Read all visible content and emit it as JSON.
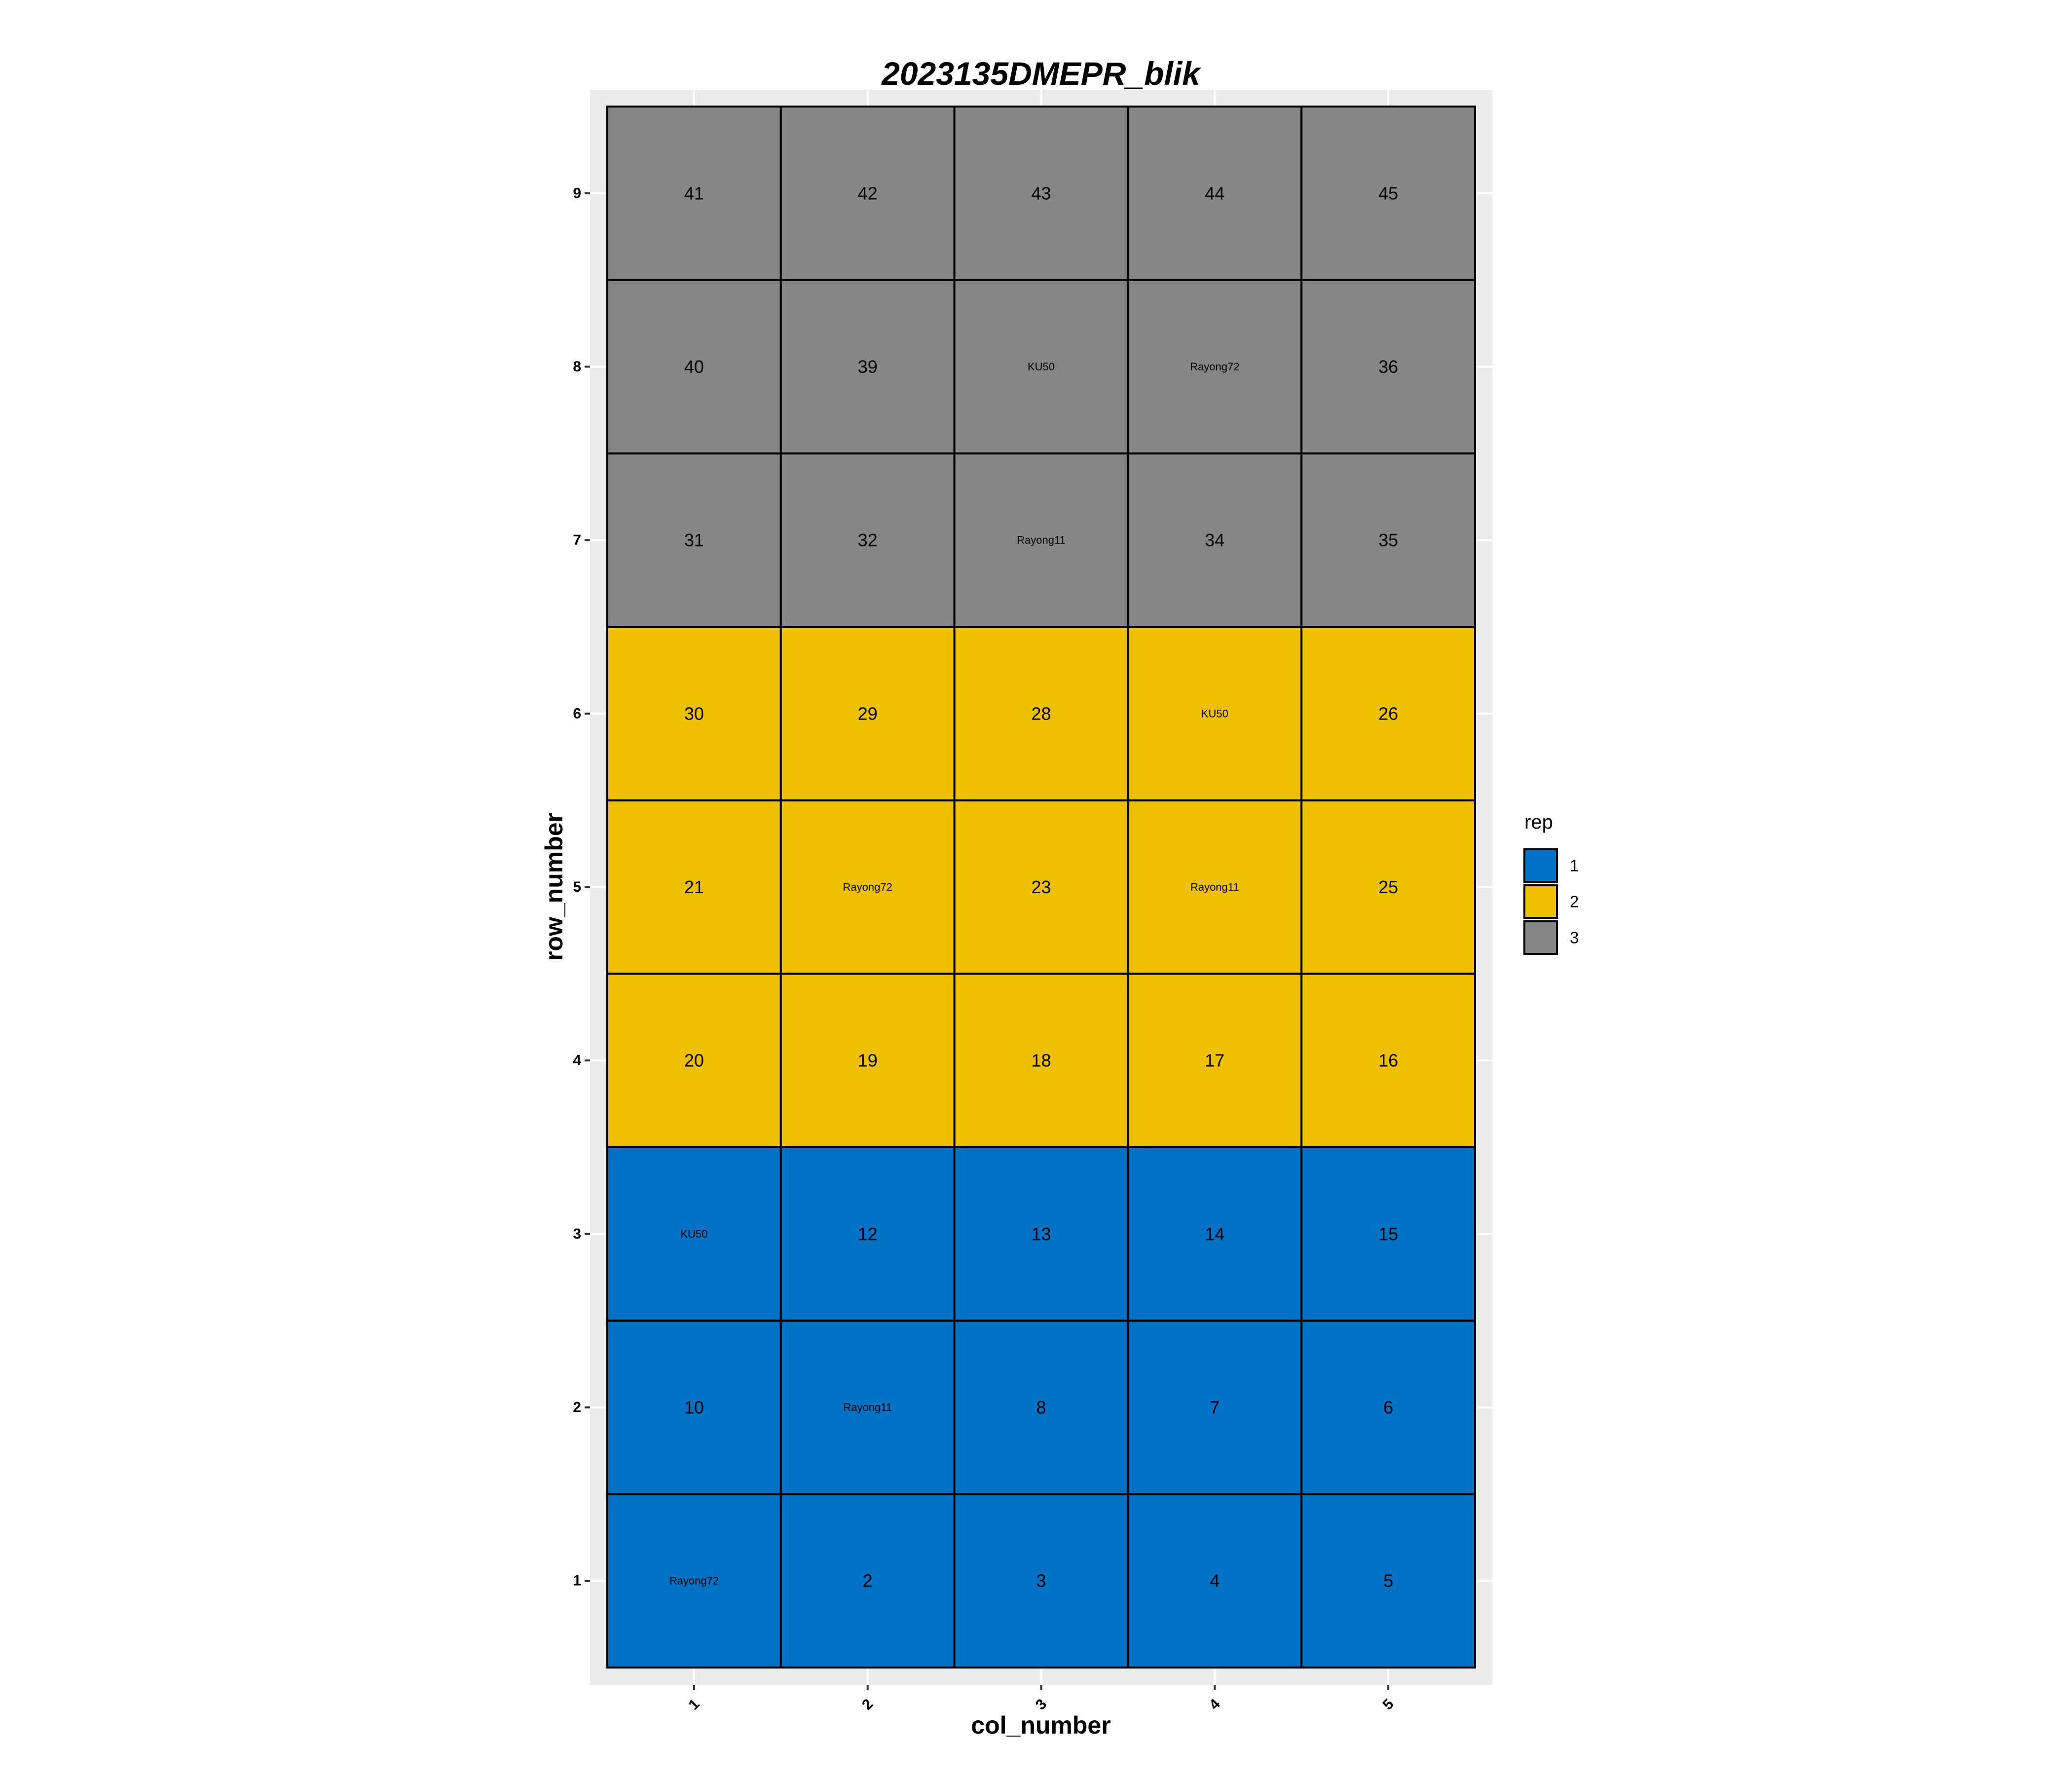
{
  "chart_data": {
    "type": "heatmap",
    "title": "2023135DMEPR_blik",
    "xlabel": "col_number",
    "ylabel": "row_number",
    "x_ticks": [
      1,
      2,
      3,
      4,
      5
    ],
    "y_ticks": [
      1,
      2,
      3,
      4,
      5,
      6,
      7,
      8,
      9
    ],
    "xlim": [
      0.5,
      5.5
    ],
    "ylim": [
      0.5,
      9.5
    ],
    "grid": true,
    "legend": {
      "title": "rep",
      "placement": "right",
      "entries": [
        {
          "label": "1",
          "color": "#0072C6"
        },
        {
          "label": "2",
          "color": "#EFC000"
        },
        {
          "label": "3",
          "color": "#868686"
        }
      ]
    },
    "cells": [
      {
        "row": 1,
        "col": 1,
        "rep": "1",
        "label": "Rayong72"
      },
      {
        "row": 1,
        "col": 2,
        "rep": "1",
        "label": "2"
      },
      {
        "row": 1,
        "col": 3,
        "rep": "1",
        "label": "3"
      },
      {
        "row": 1,
        "col": 4,
        "rep": "1",
        "label": "4"
      },
      {
        "row": 1,
        "col": 5,
        "rep": "1",
        "label": "5"
      },
      {
        "row": 2,
        "col": 1,
        "rep": "1",
        "label": "10"
      },
      {
        "row": 2,
        "col": 2,
        "rep": "1",
        "label": "Rayong11"
      },
      {
        "row": 2,
        "col": 3,
        "rep": "1",
        "label": "8"
      },
      {
        "row": 2,
        "col": 4,
        "rep": "1",
        "label": "7"
      },
      {
        "row": 2,
        "col": 5,
        "rep": "1",
        "label": "6"
      },
      {
        "row": 3,
        "col": 1,
        "rep": "1",
        "label": "KU50"
      },
      {
        "row": 3,
        "col": 2,
        "rep": "1",
        "label": "12"
      },
      {
        "row": 3,
        "col": 3,
        "rep": "1",
        "label": "13"
      },
      {
        "row": 3,
        "col": 4,
        "rep": "1",
        "label": "14"
      },
      {
        "row": 3,
        "col": 5,
        "rep": "1",
        "label": "15"
      },
      {
        "row": 4,
        "col": 1,
        "rep": "2",
        "label": "20"
      },
      {
        "row": 4,
        "col": 2,
        "rep": "2",
        "label": "19"
      },
      {
        "row": 4,
        "col": 3,
        "rep": "2",
        "label": "18"
      },
      {
        "row": 4,
        "col": 4,
        "rep": "2",
        "label": "17"
      },
      {
        "row": 4,
        "col": 5,
        "rep": "2",
        "label": "16"
      },
      {
        "row": 5,
        "col": 1,
        "rep": "2",
        "label": "21"
      },
      {
        "row": 5,
        "col": 2,
        "rep": "2",
        "label": "Rayong72"
      },
      {
        "row": 5,
        "col": 3,
        "rep": "2",
        "label": "23"
      },
      {
        "row": 5,
        "col": 4,
        "rep": "2",
        "label": "Rayong11"
      },
      {
        "row": 5,
        "col": 5,
        "rep": "2",
        "label": "25"
      },
      {
        "row": 6,
        "col": 1,
        "rep": "2",
        "label": "30"
      },
      {
        "row": 6,
        "col": 2,
        "rep": "2",
        "label": "29"
      },
      {
        "row": 6,
        "col": 3,
        "rep": "2",
        "label": "28"
      },
      {
        "row": 6,
        "col": 4,
        "rep": "2",
        "label": "KU50"
      },
      {
        "row": 6,
        "col": 5,
        "rep": "2",
        "label": "26"
      },
      {
        "row": 7,
        "col": 1,
        "rep": "3",
        "label": "31"
      },
      {
        "row": 7,
        "col": 2,
        "rep": "3",
        "label": "32"
      },
      {
        "row": 7,
        "col": 3,
        "rep": "3",
        "label": "Rayong11"
      },
      {
        "row": 7,
        "col": 4,
        "rep": "3",
        "label": "34"
      },
      {
        "row": 7,
        "col": 5,
        "rep": "3",
        "label": "35"
      },
      {
        "row": 8,
        "col": 1,
        "rep": "3",
        "label": "40"
      },
      {
        "row": 8,
        "col": 2,
        "rep": "3",
        "label": "39"
      },
      {
        "row": 8,
        "col": 3,
        "rep": "3",
        "label": "KU50"
      },
      {
        "row": 8,
        "col": 4,
        "rep": "3",
        "label": "Rayong72"
      },
      {
        "row": 8,
        "col": 5,
        "rep": "3",
        "label": "36"
      },
      {
        "row": 9,
        "col": 1,
        "rep": "3",
        "label": "41"
      },
      {
        "row": 9,
        "col": 2,
        "rep": "3",
        "label": "42"
      },
      {
        "row": 9,
        "col": 3,
        "rep": "3",
        "label": "43"
      },
      {
        "row": 9,
        "col": 4,
        "rep": "3",
        "label": "44"
      },
      {
        "row": 9,
        "col": 5,
        "rep": "3",
        "label": "45"
      }
    ]
  }
}
